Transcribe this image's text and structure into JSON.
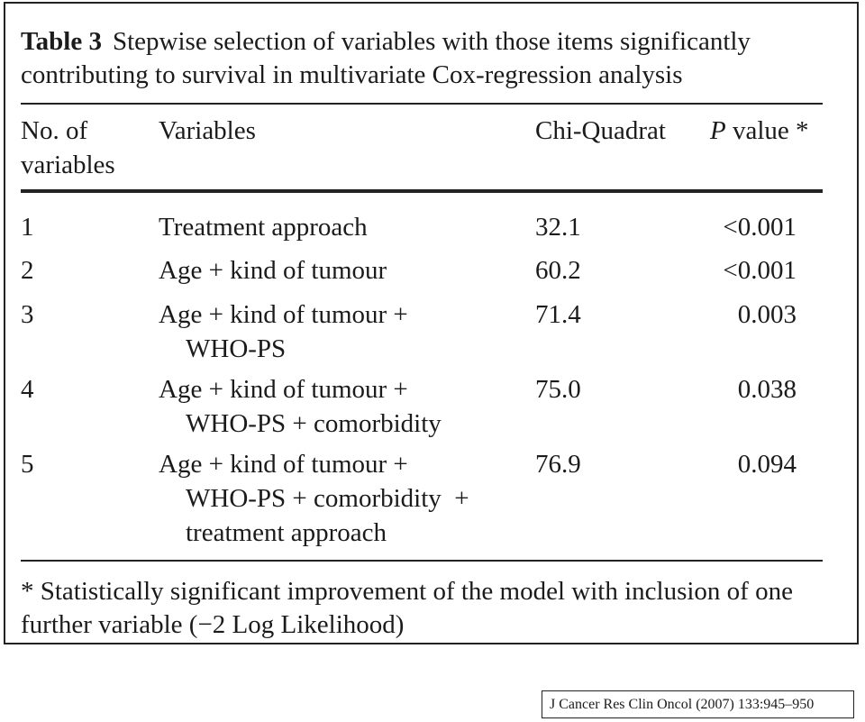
{
  "table": {
    "caption_label": "Table 3",
    "caption_text": "Stepwise selection of variables with those items significantly contributing to survival in multivariate Cox-regression analysis",
    "headers": {
      "no_line1": "No. of",
      "no_line2": "variables",
      "variables": "Variables",
      "chi": "Chi-Quadrat",
      "p_italic": "P",
      "p_rest": "value *"
    },
    "rows": [
      {
        "no": "1",
        "variables": [
          "Treatment approach"
        ],
        "chi": "32.1",
        "p": "<0.001"
      },
      {
        "no": "2",
        "variables": [
          "Age + kind of tumour"
        ],
        "chi": "60.2",
        "p": "<0.001"
      },
      {
        "no": "3",
        "variables": [
          "Age + kind of tumour +",
          "WHO-PS"
        ],
        "chi": "71.4",
        "p": "0.003"
      },
      {
        "no": "4",
        "variables": [
          "Age + kind of tumour +",
          "WHO-PS + comorbidity"
        ],
        "chi": "75.0",
        "p": "0.038"
      },
      {
        "no": "5",
        "variables": [
          "Age + kind of tumour +",
          "WHO-PS + comorbidity  +",
          "treatment approach"
        ],
        "chi": "76.9",
        "p": "0.094"
      }
    ],
    "footnote": "* Statistically significant improvement of the model with inclusion of one further variable (−2 Log Likelihood)"
  },
  "citation": "J Cancer Res Clin Oncol (2007) 133:945–950"
}
